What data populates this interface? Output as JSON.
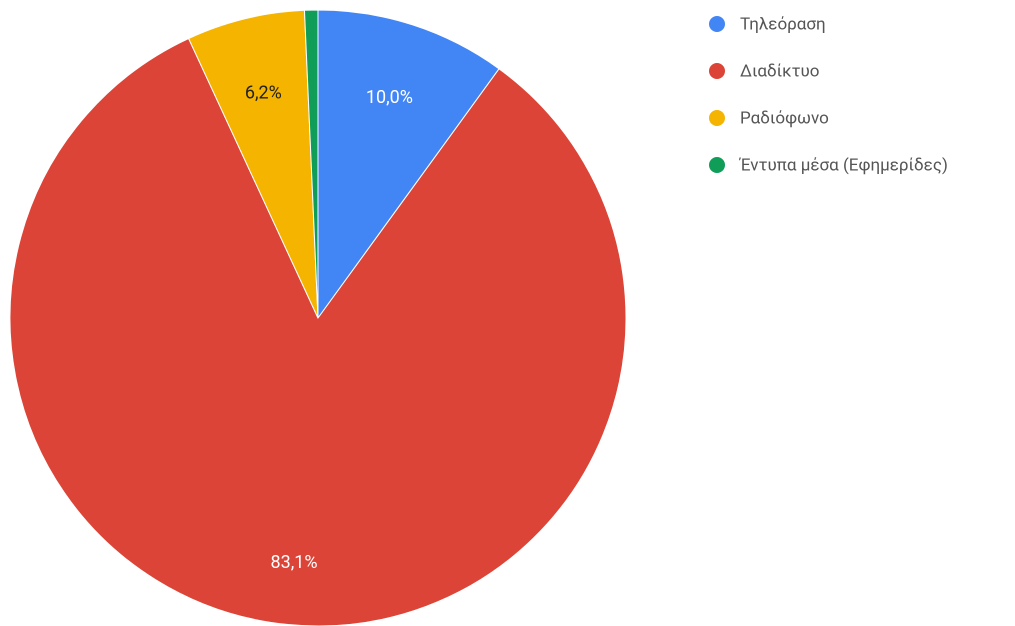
{
  "chart_data": {
    "type": "pie",
    "categories": [
      "Τηλεόραση",
      "Διαδίκτυο",
      "Ραδιόφωνο",
      "Έντυπα μέσα (Εφημερίδες)"
    ],
    "values": [
      10.0,
      83.1,
      6.2,
      0.7
    ],
    "value_labels": [
      "10,0%",
      "83,1%",
      "6,2%",
      null
    ],
    "colors": [
      "#4285f4",
      "#db4437",
      "#f4b400",
      "#0f9d58"
    ],
    "legend": "right"
  }
}
